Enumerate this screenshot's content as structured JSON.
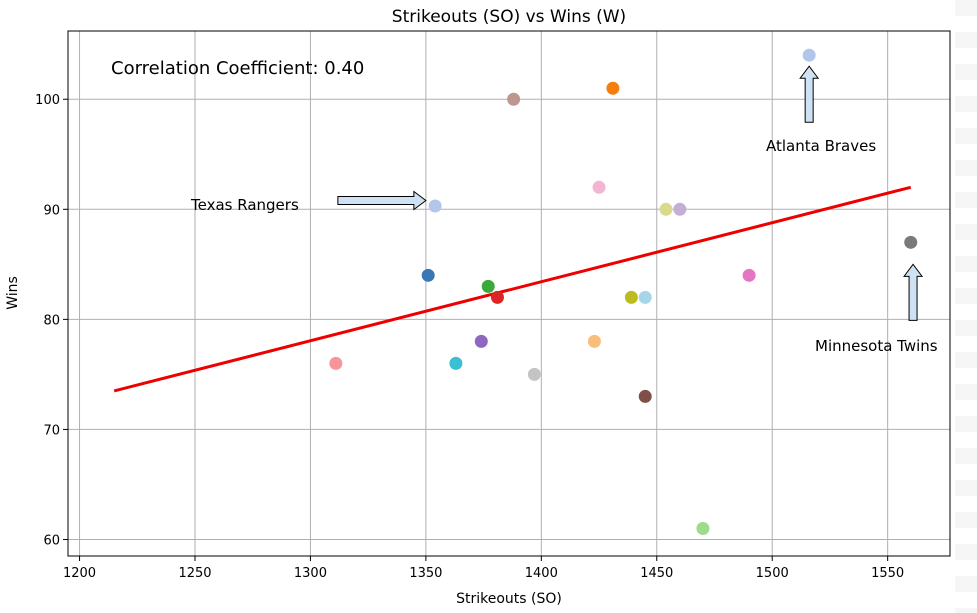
{
  "chart_data": {
    "type": "scatter",
    "title": "Strikeouts (SO) vs Wins (W)",
    "xlabel": "Strikeouts (SO)",
    "ylabel": "Wins",
    "xlim": [
      1195,
      1577
    ],
    "ylim": [
      58.5,
      106.2
    ],
    "xticks": [
      1200,
      1250,
      1300,
      1350,
      1400,
      1450,
      1500,
      1550
    ],
    "yticks": [
      60,
      70,
      80,
      90,
      100
    ],
    "grid": true,
    "points": [
      {
        "x": 1311,
        "y": 76,
        "color": "#f7969a"
      },
      {
        "x": 1351,
        "y": 84,
        "color": "#3a78b5"
      },
      {
        "x": 1354,
        "y": 90.3,
        "color": "#b2c6ea"
      },
      {
        "x": 1363,
        "y": 76,
        "color": "#3bbfd2"
      },
      {
        "x": 1374,
        "y": 78,
        "color": "#8f67c0"
      },
      {
        "x": 1377,
        "y": 83,
        "color": "#3aa83a"
      },
      {
        "x": 1381,
        "y": 82,
        "color": "#dc2626"
      },
      {
        "x": 1388,
        "y": 100,
        "color": "#bf968f"
      },
      {
        "x": 1397,
        "y": 75,
        "color": "#c4c4c4"
      },
      {
        "x": 1423,
        "y": 78,
        "color": "#fbbd7b"
      },
      {
        "x": 1425,
        "y": 92,
        "color": "#f2b6d2"
      },
      {
        "x": 1431,
        "y": 101,
        "color": "#f67e0e"
      },
      {
        "x": 1439,
        "y": 82,
        "color": "#bcbc21"
      },
      {
        "x": 1445,
        "y": 82,
        "color": "#a6d5ea"
      },
      {
        "x": 1445,
        "y": 73,
        "color": "#7e5048"
      },
      {
        "x": 1454,
        "y": 90,
        "color": "#dada8c"
      },
      {
        "x": 1460,
        "y": 90,
        "color": "#c3aed6"
      },
      {
        "x": 1470,
        "y": 61,
        "color": "#9cdc8b"
      },
      {
        "x": 1490,
        "y": 84,
        "color": "#e575c5"
      },
      {
        "x": 1516,
        "y": 104,
        "color": "#b2c6ea"
      },
      {
        "x": 1560,
        "y": 87,
        "color": "#7a7a7a"
      }
    ],
    "trendline": {
      "x": [
        1215,
        1560
      ],
      "y": [
        73.5,
        92
      ],
      "color": "#ee0000"
    },
    "annotations": [
      {
        "text": "Correlation Coefficient: 0.40"
      },
      {
        "text": "Texas Rangers",
        "target_x": 1350,
        "target_y": 90.8,
        "arrow": "right"
      },
      {
        "text": "Atlanta Braves",
        "target_x": 1516,
        "target_y": 103,
        "arrow": "up"
      },
      {
        "text": "Minnesota Twins",
        "target_x": 1561,
        "target_y": 85,
        "arrow": "up"
      }
    ]
  }
}
